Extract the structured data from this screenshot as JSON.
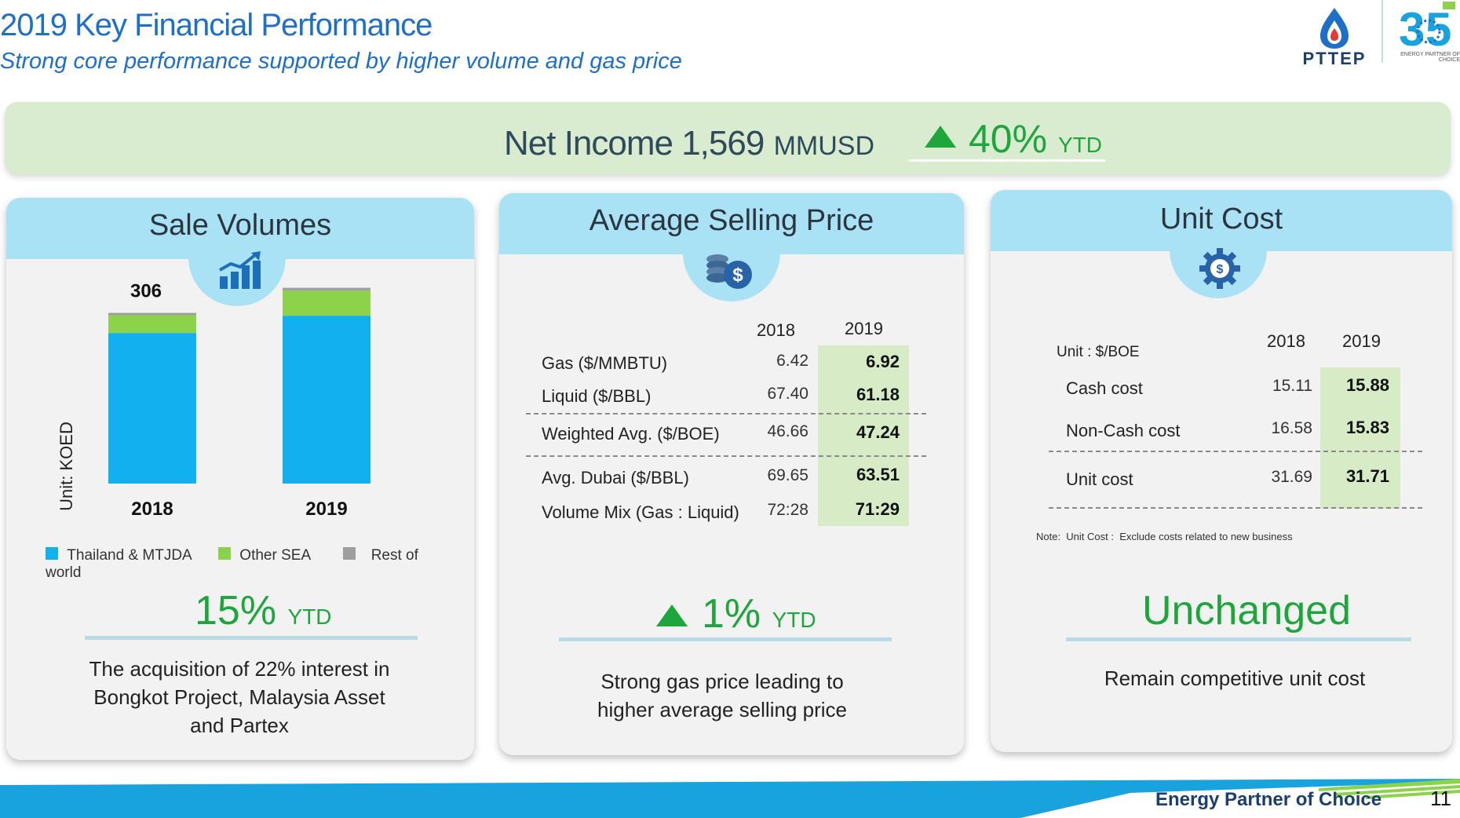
{
  "header": {
    "title": "2019 Key Financial Performance",
    "subtitle": "Strong core performance supported by higher volume and gas price",
    "logo_text": "PTTEP",
    "logo35_text": "ENERGY PARTNER OF CHOICE"
  },
  "banner": {
    "label": "Net Income 1,569",
    "unit": "MMUSD",
    "change": "40%",
    "change_suffix": "YTD"
  },
  "sale_volumes": {
    "title": "Sale Volumes",
    "icon": "bar-chart-icon",
    "y_axis_label": "Unit: KOED",
    "desc_lines": [
      "The acquisition of 22% interest in",
      "Bongkot Project, Malaysia Asset",
      "and Partex"
    ],
    "change": "15%",
    "change_suffix": "YTD"
  },
  "chart_data": {
    "type": "bar",
    "stacked": true,
    "categories": [
      "2018",
      "2019"
    ],
    "totals": [
      306,
      351
    ],
    "series": [
      {
        "name": "Thailand & MTJDA",
        "color": "#13b0ef",
        "values": [
          270,
          301
        ]
      },
      {
        "name": "Other SEA",
        "color": "#8cd24b",
        "values": [
          32,
          45
        ]
      },
      {
        "name": "Rest of world",
        "color": "#9e9e9e",
        "values": [
          4,
          5
        ]
      }
    ],
    "ylabel": "Unit: KOED",
    "ylim": [
      0,
      380
    ],
    "legend_position": "bottom"
  },
  "avg_price": {
    "title": "Average Selling Price",
    "icon": "coins-dollar-icon",
    "col_headers": [
      "2018",
      "2019"
    ],
    "rows": [
      {
        "label": "Gas ($/MMBTU)",
        "y2018": "6.42",
        "y2019": "6.92"
      },
      {
        "label": "Liquid ($/BBL)",
        "y2018": "67.40",
        "y2019": "61.18"
      },
      {
        "label": "Weighted Avg. ($/BOE)",
        "y2018": "46.66",
        "y2019": "47.24"
      },
      {
        "label": "Avg. Dubai ($/BBL)",
        "y2018": "69.65",
        "y2019": "63.51"
      },
      {
        "label": "Volume Mix (Gas : Liquid)",
        "y2018": "72:28",
        "y2019": "71:29"
      }
    ],
    "change": "1%",
    "change_suffix": "YTD",
    "desc_lines": [
      "Strong gas price leading to",
      "higher average selling price"
    ]
  },
  "unit_cost": {
    "title": "Unit Cost",
    "icon": "gear-dollar-icon",
    "unit_label": "Unit : $/BOE",
    "col_headers": [
      "2018",
      "2019"
    ],
    "rows": [
      {
        "label": "Cash cost",
        "y2018": "15.11",
        "y2019": "15.88"
      },
      {
        "label": "Non-Cash cost",
        "y2018": "16.58",
        "y2019": "15.83"
      },
      {
        "label": "Unit cost",
        "y2018": "31.69",
        "y2019": "31.71"
      }
    ],
    "note": "Note:  Unit Cost :  Exclude costs related to new business",
    "status": "Unchanged",
    "desc": "Remain competitive unit cost"
  },
  "footer": {
    "tagline": "Energy Partner of Choice",
    "page": "11"
  },
  "colors": {
    "accent_blue": "#1e6fc8",
    "green": "#1ea53c",
    "card_header": "#a9e2f5",
    "highlight": "#d7ecc6"
  }
}
